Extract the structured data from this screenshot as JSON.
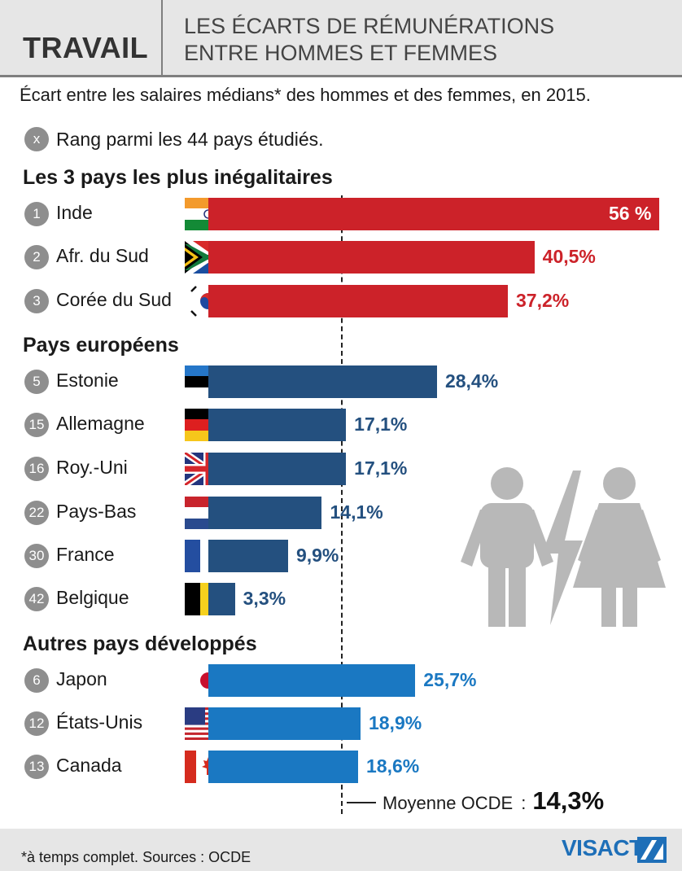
{
  "header": {
    "kicker": "TRAVAIL",
    "title_line1": "LES ÉCARTS DE RÉMUNÉRATIONS",
    "title_line2": "ENTRE HOMMES ET FEMMES"
  },
  "subtitle": "Écart entre les salaires médians* des hommes et des femmes, en 2015.",
  "rank_legend": {
    "symbol": "x",
    "text": "Rang parmi les 44 pays étudiés."
  },
  "sections": {
    "unequal": "Les 3 pays les plus inégalitaires",
    "europe": "Pays européens",
    "other": "Autres pays développés"
  },
  "average": {
    "label": "Moyenne OCDE",
    "colon": ":",
    "value_label": "14,3%"
  },
  "footer": {
    "note": "*à temps complet. Sources : OCDE",
    "brand": "VISACTU"
  },
  "colors": {
    "unequal": "#cc2229",
    "europe": "#24507f",
    "other": "#1a78c2",
    "rank_circle": "#8e8e8e",
    "figure": "#b8b8b8"
  },
  "chart_data": {
    "type": "bar",
    "orientation": "horizontal",
    "unit": "%",
    "xlim": [
      0,
      56
    ],
    "reference_line": {
      "label": "Moyenne OCDE",
      "value": 14.3
    },
    "groups": [
      {
        "name": "Les 3 pays les plus inégalitaires",
        "color_key": "unequal",
        "items": [
          {
            "rank": "1",
            "country": "Inde",
            "flag": "india-flag",
            "value": 56,
            "label": "56 %"
          },
          {
            "rank": "2",
            "country": "Afr. du Sud",
            "flag": "south-africa-flag",
            "value": 40.5,
            "label": "40,5%"
          },
          {
            "rank": "3",
            "country": "Corée du Sud",
            "flag": "south-korea-flag",
            "value": 37.2,
            "label": "37,2%"
          }
        ]
      },
      {
        "name": "Pays européens",
        "color_key": "europe",
        "items": [
          {
            "rank": "5",
            "country": "Estonie",
            "flag": "estonia-flag",
            "value": 28.4,
            "label": "28,4%"
          },
          {
            "rank": "15",
            "country": "Allemagne",
            "flag": "germany-flag",
            "value": 17.1,
            "label": "17,1%"
          },
          {
            "rank": "16",
            "country": "Roy.-Uni",
            "flag": "uk-flag",
            "value": 17.1,
            "label": "17,1%"
          },
          {
            "rank": "22",
            "country": "Pays-Bas",
            "flag": "netherlands-flag",
            "value": 14.1,
            "label": "14,1%"
          },
          {
            "rank": "30",
            "country": "France",
            "flag": "france-flag",
            "value": 9.9,
            "label": "9,9%"
          },
          {
            "rank": "42",
            "country": "Belgique",
            "flag": "belgium-flag",
            "value": 3.3,
            "label": "3,3%"
          }
        ]
      },
      {
        "name": "Autres pays développés",
        "color_key": "other",
        "items": [
          {
            "rank": "6",
            "country": "Japon",
            "flag": "japan-flag",
            "value": 25.7,
            "label": "25,7%"
          },
          {
            "rank": "12",
            "country": "États-Unis",
            "flag": "usa-flag",
            "value": 18.9,
            "label": "18,9%"
          },
          {
            "rank": "13",
            "country": "Canada",
            "flag": "canada-flag",
            "value": 18.6,
            "label": "18,6%"
          }
        ]
      }
    ]
  }
}
